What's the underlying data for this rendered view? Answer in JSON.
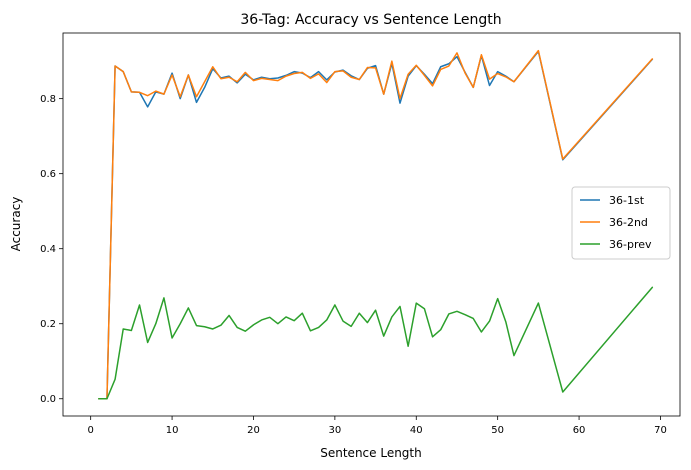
{
  "chart_data": {
    "type": "line",
    "title": "36-Tag: Accuracy vs Sentence Length",
    "xlabel": "Sentence Length",
    "ylabel": "Accuracy",
    "xlim": [
      -3.4,
      72.4
    ],
    "ylim": [
      -0.046,
      0.975
    ],
    "xticks": [
      0,
      10,
      20,
      30,
      40,
      50,
      60,
      70
    ],
    "xtick_labels": [
      "0",
      "10",
      "20",
      "30",
      "40",
      "50",
      "60",
      "70"
    ],
    "yticks": [
      0.0,
      0.2,
      0.4,
      0.6,
      0.8
    ],
    "ytick_labels": [
      "0.0",
      "0.2",
      "0.4",
      "0.6",
      "0.8"
    ],
    "grid": false,
    "legend_position": "center-right",
    "x": [
      1,
      2,
      3,
      4,
      5,
      6,
      7,
      8,
      9,
      10,
      11,
      12,
      13,
      14,
      15,
      16,
      17,
      18,
      19,
      20,
      21,
      22,
      23,
      24,
      25,
      26,
      27,
      28,
      29,
      30,
      31,
      32,
      33,
      34,
      35,
      36,
      37,
      38,
      39,
      40,
      41,
      42,
      43,
      44,
      45,
      46,
      47,
      48,
      49,
      50,
      51,
      52,
      55,
      58,
      69
    ],
    "series": [
      {
        "name": "36-1st",
        "color": "#1f77b4",
        "values": [
          0.0,
          0.0,
          0.887,
          0.872,
          0.818,
          0.817,
          0.778,
          0.818,
          0.812,
          0.868,
          0.8,
          0.863,
          0.79,
          0.83,
          0.88,
          0.855,
          0.86,
          0.842,
          0.865,
          0.85,
          0.857,
          0.853,
          0.855,
          0.862,
          0.872,
          0.868,
          0.856,
          0.872,
          0.85,
          0.871,
          0.876,
          0.861,
          0.851,
          0.881,
          0.888,
          0.812,
          0.894,
          0.788,
          0.86,
          0.888,
          0.865,
          0.84,
          0.885,
          0.893,
          0.912,
          0.87,
          0.83,
          0.915,
          0.835,
          0.872,
          0.86,
          0.845,
          0.926,
          0.637,
          0.905
        ]
      },
      {
        "name": "36-2nd",
        "color": "#ff7f0e",
        "values": [
          0.0,
          0.0,
          0.887,
          0.872,
          0.818,
          0.817,
          0.808,
          0.82,
          0.812,
          0.863,
          0.805,
          0.863,
          0.805,
          0.845,
          0.885,
          0.853,
          0.857,
          0.845,
          0.87,
          0.848,
          0.854,
          0.851,
          0.848,
          0.86,
          0.867,
          0.87,
          0.854,
          0.866,
          0.843,
          0.872,
          0.874,
          0.857,
          0.851,
          0.883,
          0.882,
          0.812,
          0.9,
          0.8,
          0.865,
          0.889,
          0.862,
          0.834,
          0.878,
          0.887,
          0.922,
          0.868,
          0.83,
          0.917,
          0.852,
          0.867,
          0.858,
          0.845,
          0.928,
          0.639,
          0.906
        ]
      },
      {
        "name": "36-prev",
        "color": "#2ca02c",
        "values": [
          0.0,
          0.0,
          0.052,
          0.186,
          0.182,
          0.25,
          0.15,
          0.2,
          0.269,
          0.162,
          0.2,
          0.242,
          0.195,
          0.192,
          0.186,
          0.196,
          0.222,
          0.19,
          0.18,
          0.197,
          0.21,
          0.217,
          0.2,
          0.218,
          0.208,
          0.228,
          0.181,
          0.19,
          0.21,
          0.25,
          0.207,
          0.193,
          0.228,
          0.203,
          0.236,
          0.167,
          0.218,
          0.246,
          0.14,
          0.255,
          0.24,
          0.165,
          0.184,
          0.226,
          0.233,
          0.224,
          0.214,
          0.178,
          0.207,
          0.267,
          0.205,
          0.115,
          0.255,
          0.018,
          0.297
        ]
      }
    ]
  }
}
